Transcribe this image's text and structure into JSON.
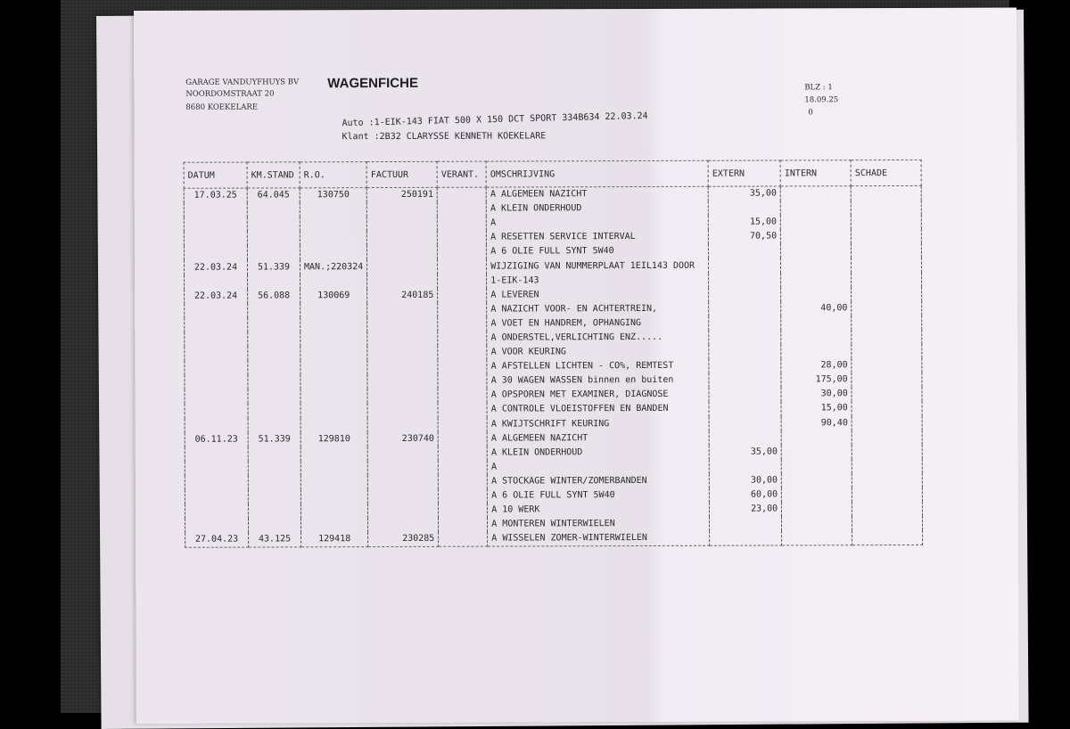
{
  "header": {
    "company": [
      "GARAGE VANDUYFHUYS BV",
      "NOORDOMSTRAAT 20",
      "8680 KOEKELARE"
    ],
    "title": "WAGENFICHE",
    "page": "BLZ : 1",
    "date": "18.09.25",
    "extra": "0",
    "auto": "Auto :1-EIK-143  FIAT 500 X   150 DCT SPORT  334B634  22.03.24",
    "klant": "Klant :2B32  CLARYSSE KENNETH   KOEKELARE"
  },
  "table": {
    "columns": [
      "DATUM",
      "KM.STAND",
      "R.O.",
      "FACTUUR",
      "VERANT.",
      "OMSCHRIJVING",
      "EXTERN",
      "INTERN",
      "SCHADE"
    ],
    "rows": [
      [
        "17.03.25",
        "64.045",
        "130750",
        "250191",
        "",
        "A ALGEMEEN NAZICHT",
        "35,00",
        "",
        ""
      ],
      [
        "",
        "",
        "",
        "",
        "",
        "A KLEIN ONDERHOUD",
        "",
        "",
        ""
      ],
      [
        "",
        "",
        "",
        "",
        "",
        "A",
        "15,00",
        "",
        ""
      ],
      [
        "",
        "",
        "",
        "",
        "",
        "A RESETTEN SERVICE INTERVAL",
        "70,50",
        "",
        ""
      ],
      [
        "",
        "",
        "",
        "",
        "",
        "A 6 OLIE FULL SYNT 5W40",
        "",
        "",
        ""
      ],
      [
        "22.03.24",
        "51.339",
        "MAN.;220324",
        "",
        "",
        "WIJZIGING VAN NUMMERPLAAT 1EIL143 DOOR",
        "",
        "",
        ""
      ],
      [
        "",
        "",
        "",
        "",
        "",
        "1-EIK-143",
        "",
        "",
        ""
      ],
      [
        "22.03.24",
        "56.088",
        "130069",
        "240185",
        "",
        "A LEVEREN",
        "",
        "",
        ""
      ],
      [
        "",
        "",
        "",
        "",
        "",
        "A NAZICHT VOOR- EN ACHTERTREIN,",
        "",
        "40,00",
        ""
      ],
      [
        "",
        "",
        "",
        "",
        "",
        "A VOET EN HANDREM, OPHANGING",
        "",
        "",
        ""
      ],
      [
        "",
        "",
        "",
        "",
        "",
        "A ONDERSTEL,VERLICHTING ENZ.....",
        "",
        "",
        ""
      ],
      [
        "",
        "",
        "",
        "",
        "",
        "A VOOR KEURING",
        "",
        "",
        ""
      ],
      [
        "",
        "",
        "",
        "",
        "",
        "A AFSTELLEN LICHTEN - CO%, REMTEST",
        "",
        "28,00",
        ""
      ],
      [
        "",
        "",
        "",
        "",
        "",
        "A 30 WAGEN WASSEN binnen en buiten",
        "",
        "175,00",
        ""
      ],
      [
        "",
        "",
        "",
        "",
        "",
        "A OPSPOREN MET EXAMINER, DIAGNOSE",
        "",
        "30,00",
        ""
      ],
      [
        "",
        "",
        "",
        "",
        "",
        "A CONTROLE VLOEISTOFFEN EN BANDEN",
        "",
        "15,00",
        ""
      ],
      [
        "",
        "",
        "",
        "",
        "",
        "A KWIJTSCHRIFT KEURING",
        "",
        "90,40",
        ""
      ],
      [
        "06.11.23",
        "51.339",
        "129810",
        "230740",
        "",
        "A ALGEMEEN NAZICHT",
        "",
        "",
        ""
      ],
      [
        "",
        "",
        "",
        "",
        "",
        "A KLEIN ONDERHOUD",
        "35,00",
        "",
        ""
      ],
      [
        "",
        "",
        "",
        "",
        "",
        "A",
        "",
        "",
        ""
      ],
      [
        "",
        "",
        "",
        "",
        "",
        "A STOCKAGE WINTER/ZOMERBANDEN",
        "30,00",
        "",
        ""
      ],
      [
        "",
        "",
        "",
        "",
        "",
        "A 6 OLIE FULL SYNT 5W40",
        "60,00",
        "",
        ""
      ],
      [
        "",
        "",
        "",
        "",
        "",
        "A 10 WERK",
        "23,00",
        "",
        ""
      ],
      [
        "",
        "",
        "",
        "",
        "",
        "A MONTEREN WINTERWIELEN",
        "",
        "",
        ""
      ],
      [
        "27.04.23",
        "43.125",
        "129418",
        "230285",
        "",
        "A WISSELEN ZOMER-WINTERWIELEN",
        "",
        "",
        ""
      ]
    ]
  }
}
